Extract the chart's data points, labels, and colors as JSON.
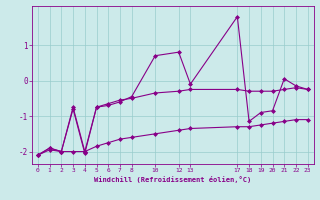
{
  "xlabel": "Windchill (Refroidissement éolien,°C)",
  "background_color": "#cceaea",
  "line_color": "#880088",
  "grid_color": "#99cccc",
  "xlim": [
    -0.5,
    23.5
  ],
  "ylim": [
    -2.35,
    2.1
  ],
  "xticks": [
    0,
    1,
    2,
    3,
    4,
    5,
    6,
    7,
    8,
    10,
    12,
    13,
    17,
    18,
    19,
    20,
    21,
    22,
    23
  ],
  "yticks": [
    -2,
    -1,
    0,
    1
  ],
  "series": [
    {
      "x": [
        0,
        1,
        2,
        3,
        4,
        5,
        6,
        7,
        8,
        10,
        12,
        13,
        17,
        18,
        19,
        20,
        21,
        22,
        23
      ],
      "y": [
        -2.1,
        -1.95,
        -2.0,
        -2.0,
        -2.0,
        -1.85,
        -1.75,
        -1.65,
        -1.6,
        -1.5,
        -1.4,
        -1.35,
        -1.3,
        -1.3,
        -1.25,
        -1.2,
        -1.15,
        -1.1,
        -1.1
      ]
    },
    {
      "x": [
        0,
        1,
        2,
        3,
        4,
        5,
        6,
        7,
        8,
        10,
        12,
        13,
        17,
        18,
        19,
        20,
        21,
        22,
        23
      ],
      "y": [
        -2.1,
        -1.9,
        -2.0,
        -0.75,
        -2.0,
        -0.75,
        -0.65,
        -0.55,
        -0.5,
        -0.35,
        -0.3,
        -0.25,
        -0.25,
        -0.3,
        -0.3,
        -0.3,
        -0.25,
        -0.2,
        -0.25
      ]
    },
    {
      "x": [
        0,
        1,
        2,
        3,
        4,
        5,
        6,
        7,
        8,
        10,
        12,
        13,
        17,
        18,
        19,
        20,
        21,
        22,
        23
      ],
      "y": [
        -2.1,
        -1.9,
        -2.0,
        -0.8,
        -2.05,
        -0.75,
        -0.7,
        -0.6,
        -0.45,
        0.7,
        0.8,
        -0.1,
        1.8,
        -1.15,
        -0.9,
        -0.85,
        0.05,
        -0.15,
        -0.25
      ]
    }
  ]
}
